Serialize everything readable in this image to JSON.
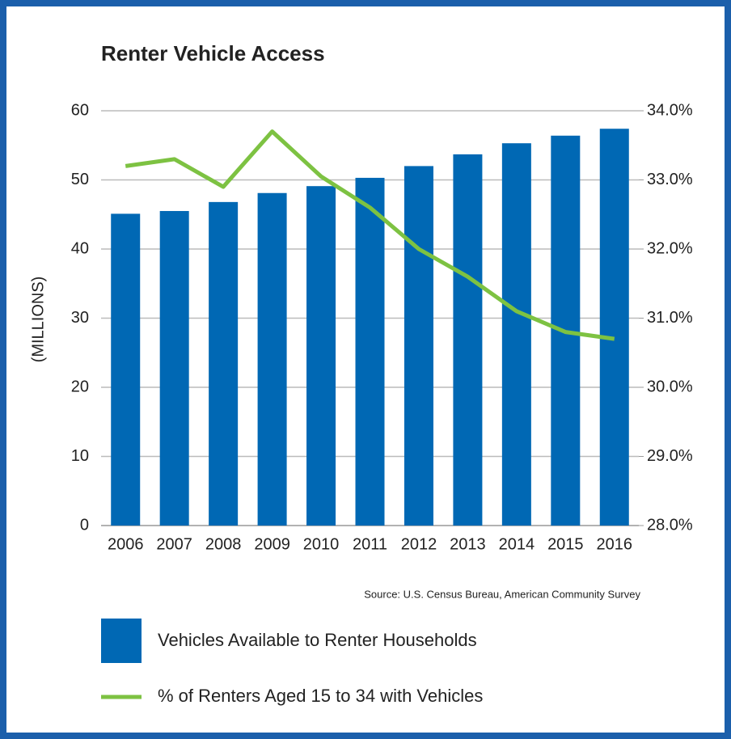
{
  "chart_data": {
    "type": "bar_line",
    "title": "Renter Vehicle Access",
    "y_label": "(MILLIONS)",
    "source": "Source: U.S. Census Bureau, American Community Survey",
    "categories": [
      "2006",
      "2007",
      "2008",
      "2009",
      "2010",
      "2011",
      "2012",
      "2013",
      "2014",
      "2015",
      "2016"
    ],
    "series": [
      {
        "name": "Vehicles Available to Renter Households",
        "color": "#0068b4",
        "type": "bar",
        "values": [
          45.1,
          45.5,
          46.8,
          48.1,
          49.1,
          50.3,
          52.0,
          53.7,
          55.3,
          56.4,
          57.4
        ]
      },
      {
        "name": "% of Renters Aged 15 to 34 with Vehicles",
        "color": "#7dc242",
        "type": "line",
        "axis": "y2",
        "values": [
          33.2,
          33.3,
          32.9,
          33.7,
          33.05,
          32.6,
          32.0,
          31.6,
          31.1,
          30.8,
          30.7
        ]
      }
    ],
    "ylim": [
      0,
      60
    ],
    "yticks": [
      0,
      10,
      20,
      30,
      40,
      50,
      60
    ],
    "y2lim": [
      28,
      34
    ],
    "y2ticks": [
      {
        "value": 28,
        "label": "28.0%"
      },
      {
        "value": 29,
        "label": "29.0%"
      },
      {
        "value": 30,
        "label": "30.0%"
      },
      {
        "value": 31,
        "label": "31.0%"
      },
      {
        "value": 32,
        "label": "32.0%"
      },
      {
        "value": 33,
        "label": "33.0%"
      },
      {
        "value": 34,
        "label": "34.0%"
      }
    ],
    "grid": true
  }
}
